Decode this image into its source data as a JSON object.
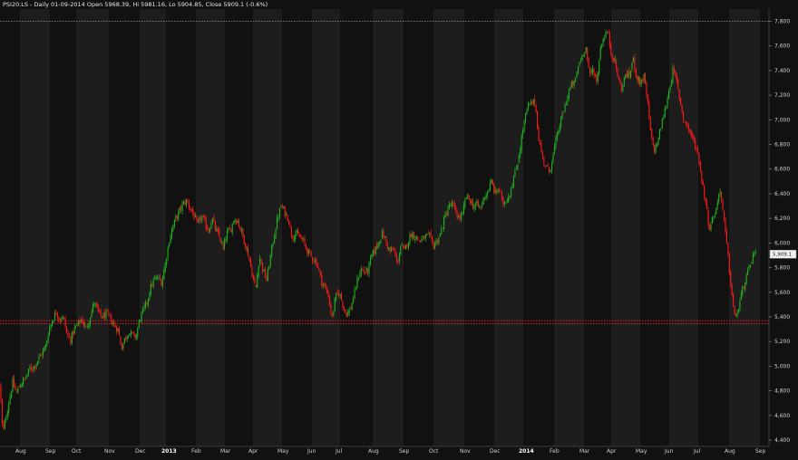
{
  "header": {
    "text": "PSI20.LS - Daily 01-09-2014 Open 5968.39, Hi 5981.16, Lo 5904.85, Close 5909.1 (-0.6%)"
  },
  "colors": {
    "background": "#111111",
    "band_alt": "#1d1d1d",
    "up": "#22b21f",
    "down": "#ff1a1a",
    "support_line": "#ff2020",
    "top_line": "#9a9a9a",
    "axis_text": "#cfcfcf"
  },
  "price_tag": "5,909.1",
  "chart_data": {
    "type": "candlestick",
    "title": "PSI20.LS - Daily 01-09-2014 Open 5968.39, Hi 5981.16, Lo 5904.85, Close 5909.1 (-0.6%)",
    "ylim": [
      4380,
      7850
    ],
    "y_ticks": [
      4400,
      4600,
      4800,
      5000,
      5200,
      5400,
      5600,
      5800,
      6000,
      6200,
      6400,
      6600,
      6800,
      7000,
      7200,
      7400,
      7600,
      7800
    ],
    "y_tick_labels": [
      "4,400",
      "4,600",
      "4,800",
      "5,000",
      "5,200",
      "5,400",
      "5,600",
      "5,800",
      "6,000",
      "6,200",
      "6,400",
      "6,600",
      "6,800",
      "7,000",
      "7,200",
      "7,400",
      "7,600",
      "7,800"
    ],
    "x_month_labels": [
      "Aug",
      "Sep",
      "Oct",
      "Nov",
      "Dec",
      "2013",
      "Feb",
      "Mar",
      "Apr",
      "May",
      "Jun",
      "Jul",
      "Aug",
      "Sep",
      "Oct",
      "Nov",
      "Dec",
      "2014",
      "Feb",
      "Mar",
      "Apr",
      "May",
      "Jun",
      "Jul",
      "Aug",
      "Sep"
    ],
    "x_month_is_year": [
      false,
      false,
      false,
      false,
      false,
      true,
      false,
      false,
      false,
      false,
      false,
      false,
      false,
      false,
      false,
      false,
      false,
      true,
      false,
      false,
      false,
      false,
      false,
      false,
      false,
      false
    ],
    "horizontal_lines": [
      {
        "value": 7800,
        "style": "dotted",
        "color": "#9a9a9a"
      },
      {
        "value": 5370,
        "style": "dotted",
        "color": "#ff2020"
      },
      {
        "value": 5345,
        "style": "dotted",
        "color": "#ff2020"
      }
    ],
    "last_close": 5909.1,
    "close_path": [
      [
        0,
        4850
      ],
      [
        3,
        4450
      ],
      [
        8,
        4640
      ],
      [
        14,
        4870
      ],
      [
        18,
        4780
      ],
      [
        22,
        4850
      ],
      [
        28,
        4900
      ],
      [
        33,
        4980
      ],
      [
        38,
        5000
      ],
      [
        44,
        5080
      ],
      [
        50,
        5150
      ],
      [
        54,
        5300
      ],
      [
        58,
        5380
      ],
      [
        62,
        5440
      ],
      [
        66,
        5380
      ],
      [
        70,
        5400
      ],
      [
        74,
        5250
      ],
      [
        78,
        5220
      ],
      [
        82,
        5300
      ],
      [
        86,
        5340
      ],
      [
        90,
        5380
      ],
      [
        95,
        5300
      ],
      [
        100,
        5420
      ],
      [
        104,
        5520
      ],
      [
        108,
        5440
      ],
      [
        112,
        5400
      ],
      [
        118,
        5420
      ],
      [
        122,
        5380
      ],
      [
        126,
        5330
      ],
      [
        130,
        5300
      ],
      [
        134,
        5150
      ],
      [
        138,
        5230
      ],
      [
        142,
        5280
      ],
      [
        146,
        5250
      ],
      [
        150,
        5240
      ],
      [
        154,
        5380
      ],
      [
        158,
        5450
      ],
      [
        162,
        5520
      ],
      [
        166,
        5640
      ],
      [
        170,
        5700
      ],
      [
        174,
        5720
      ],
      [
        178,
        5680
      ],
      [
        182,
        5820
      ],
      [
        186,
        6000
      ],
      [
        190,
        6120
      ],
      [
        194,
        6200
      ],
      [
        198,
        6260
      ],
      [
        202,
        6320
      ],
      [
        206,
        6340
      ],
      [
        210,
        6280
      ],
      [
        214,
        6220
      ],
      [
        218,
        6140
      ],
      [
        222,
        6220
      ],
      [
        226,
        6160
      ],
      [
        230,
        6100
      ],
      [
        234,
        6200
      ],
      [
        238,
        6100
      ],
      [
        242,
        6050
      ],
      [
        246,
        5950
      ],
      [
        250,
        6080
      ],
      [
        254,
        6100
      ],
      [
        258,
        6200
      ],
      [
        262,
        6180
      ],
      [
        266,
        6100
      ],
      [
        270,
        6000
      ],
      [
        274,
        5900
      ],
      [
        278,
        5750
      ],
      [
        282,
        5620
      ],
      [
        286,
        5900
      ],
      [
        290,
        5780
      ],
      [
        294,
        5700
      ],
      [
        298,
        5880
      ],
      [
        302,
        6050
      ],
      [
        306,
        6200
      ],
      [
        310,
        6300
      ],
      [
        314,
        6250
      ],
      [
        318,
        6200
      ],
      [
        322,
        6050
      ],
      [
        326,
        6080
      ],
      [
        330,
        6050
      ],
      [
        334,
        6020
      ],
      [
        338,
        5950
      ],
      [
        342,
        5900
      ],
      [
        346,
        5870
      ],
      [
        350,
        5830
      ],
      [
        354,
        5700
      ],
      [
        358,
        5640
      ],
      [
        362,
        5580
      ],
      [
        366,
        5380
      ],
      [
        370,
        5560
      ],
      [
        374,
        5600
      ],
      [
        378,
        5500
      ],
      [
        382,
        5420
      ],
      [
        386,
        5460
      ],
      [
        390,
        5560
      ],
      [
        394,
        5700
      ],
      [
        398,
        5790
      ],
      [
        402,
        5760
      ],
      [
        406,
        5780
      ],
      [
        410,
        5900
      ],
      [
        414,
        5950
      ],
      [
        418,
        6020
      ],
      [
        422,
        6080
      ],
      [
        426,
        6000
      ],
      [
        430,
        5930
      ],
      [
        434,
        5950
      ],
      [
        438,
        5830
      ],
      [
        442,
        5980
      ],
      [
        446,
        5930
      ],
      [
        450,
        6020
      ],
      [
        454,
        6080
      ],
      [
        458,
        6050
      ],
      [
        462,
        6020
      ],
      [
        466,
        6030
      ],
      [
        470,
        6050
      ],
      [
        474,
        6050
      ],
      [
        478,
        5980
      ],
      [
        482,
        6020
      ],
      [
        486,
        6080
      ],
      [
        490,
        6200
      ],
      [
        494,
        6280
      ],
      [
        498,
        6320
      ],
      [
        502,
        6260
      ],
      [
        506,
        6200
      ],
      [
        510,
        6230
      ],
      [
        514,
        6380
      ],
      [
        518,
        6350
      ],
      [
        522,
        6300
      ],
      [
        526,
        6310
      ],
      [
        530,
        6280
      ],
      [
        534,
        6380
      ],
      [
        538,
        6420
      ],
      [
        542,
        6500
      ],
      [
        546,
        6400
      ],
      [
        550,
        6450
      ],
      [
        554,
        6320
      ],
      [
        558,
        6350
      ],
      [
        562,
        6400
      ],
      [
        566,
        6520
      ],
      [
        570,
        6620
      ],
      [
        574,
        6800
      ],
      [
        578,
        6980
      ],
      [
        582,
        7110
      ],
      [
        586,
        7130
      ],
      [
        590,
        7150
      ],
      [
        594,
        6850
      ],
      [
        598,
        6700
      ],
      [
        602,
        6620
      ],
      [
        606,
        6580
      ],
      [
        610,
        6720
      ],
      [
        614,
        6860
      ],
      [
        618,
        6980
      ],
      [
        622,
        7080
      ],
      [
        626,
        7200
      ],
      [
        630,
        7280
      ],
      [
        634,
        7300
      ],
      [
        638,
        7450
      ],
      [
        642,
        7520
      ],
      [
        646,
        7600
      ],
      [
        650,
        7350
      ],
      [
        654,
        7420
      ],
      [
        658,
        7300
      ],
      [
        662,
        7580
      ],
      [
        666,
        7680
      ],
      [
        670,
        7720
      ],
      [
        674,
        7540
      ],
      [
        678,
        7480
      ],
      [
        682,
        7320
      ],
      [
        686,
        7250
      ],
      [
        690,
        7380
      ],
      [
        694,
        7350
      ],
      [
        698,
        7500
      ],
      [
        702,
        7350
      ],
      [
        706,
        7300
      ],
      [
        710,
        7350
      ],
      [
        714,
        7150
      ],
      [
        718,
        6850
      ],
      [
        722,
        6750
      ],
      [
        726,
        6850
      ],
      [
        730,
        6980
      ],
      [
        734,
        7100
      ],
      [
        738,
        7250
      ],
      [
        742,
        7400
      ],
      [
        746,
        7320
      ],
      [
        750,
        7150
      ],
      [
        754,
        7000
      ],
      [
        758,
        6950
      ],
      [
        762,
        6880
      ],
      [
        766,
        6800
      ],
      [
        770,
        6720
      ],
      [
        774,
        6500
      ],
      [
        778,
        6350
      ],
      [
        782,
        6120
      ],
      [
        786,
        6200
      ],
      [
        790,
        6280
      ],
      [
        794,
        6450
      ],
      [
        798,
        6200
      ],
      [
        802,
        5950
      ],
      [
        806,
        5650
      ],
      [
        810,
        5400
      ],
      [
        814,
        5450
      ],
      [
        818,
        5600
      ],
      [
        822,
        5700
      ],
      [
        826,
        5780
      ],
      [
        830,
        5900
      ],
      [
        834,
        5909.1
      ]
    ]
  }
}
